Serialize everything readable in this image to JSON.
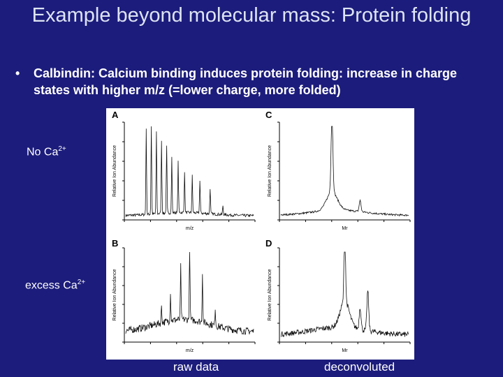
{
  "title": "Example beyond molecular mass: Protein folding",
  "bullet": "Calbindin: Calcium binding induces protein folding: increase in charge states with  higher m/z (=lower charge, more folded)",
  "labels": {
    "no_ca": {
      "text": "No Ca",
      "sup": "2+"
    },
    "excess_ca": {
      "text": "excess Ca",
      "sup": "2+"
    },
    "raw": "raw data",
    "deconvoluted": "deconvoluted"
  },
  "figure": {
    "panels": [
      {
        "letter": "A",
        "y_title": "Relative Ion Abundance",
        "x_title": "m/z"
      },
      {
        "letter": "C",
        "y_title": "Relative Ion Abundance",
        "x_title": "Mr"
      },
      {
        "letter": "B",
        "y_title": "Relative Ion Abundance",
        "x_title": "m/z"
      },
      {
        "letter": "D",
        "y_title": "Relative Ion Abundance",
        "x_title": "Mr"
      }
    ]
  }
}
